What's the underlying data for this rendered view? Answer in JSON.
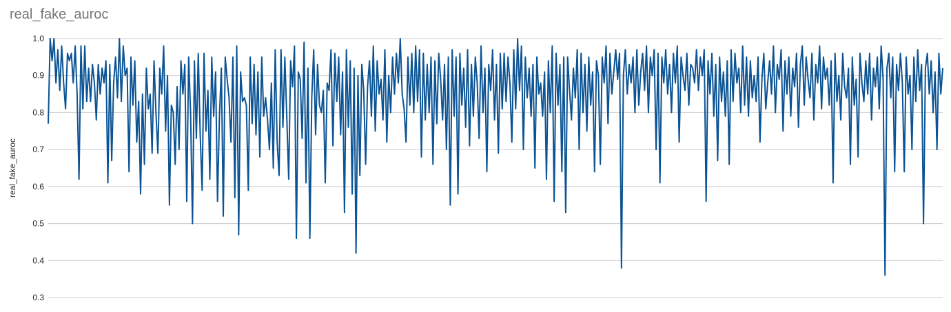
{
  "chart_data": {
    "type": "line",
    "title": "real_fake_auroc",
    "xlabel": "",
    "ylabel": "real_fake_auroc",
    "ylim": [
      0.3,
      1.0
    ],
    "yticks": [
      "0.3",
      "0.4",
      "0.5",
      "0.6",
      "0.7",
      "0.8",
      "0.9",
      "1.0"
    ],
    "grid": true,
    "legend": "none",
    "series": [
      {
        "color": "#0b5394",
        "values": [
          0.77,
          1.0,
          0.94,
          1.0,
          0.88,
          0.97,
          0.86,
          0.98,
          0.88,
          0.81,
          0.96,
          0.94,
          0.96,
          0.88,
          0.98,
          0.85,
          0.62,
          0.98,
          0.81,
          0.98,
          0.83,
          0.92,
          0.83,
          0.93,
          0.88,
          0.78,
          0.93,
          0.85,
          0.92,
          0.88,
          0.94,
          0.61,
          0.93,
          0.67,
          0.88,
          0.95,
          0.84,
          1.0,
          0.83,
          0.98,
          0.9,
          0.92,
          0.64,
          0.95,
          0.82,
          0.94,
          0.72,
          0.83,
          0.58,
          0.85,
          0.66,
          0.92,
          0.81,
          0.85,
          0.69,
          0.94,
          0.8,
          0.69,
          0.92,
          0.85,
          0.98,
          0.75,
          0.9,
          0.55,
          0.82,
          0.8,
          0.66,
          0.87,
          0.7,
          0.94,
          0.85,
          0.93,
          0.56,
          0.95,
          0.8,
          0.5,
          0.94,
          0.73,
          0.96,
          0.74,
          0.59,
          0.96,
          0.75,
          0.86,
          0.62,
          0.95,
          0.79,
          0.91,
          0.56,
          0.79,
          0.92,
          0.52,
          0.95,
          0.89,
          0.84,
          0.72,
          0.95,
          0.57,
          0.98,
          0.47,
          0.91,
          0.83,
          0.84,
          0.82,
          0.59,
          0.95,
          0.77,
          0.93,
          0.74,
          0.91,
          0.68,
          0.95,
          0.79,
          0.84,
          0.78,
          0.7,
          0.88,
          0.65,
          0.97,
          0.72,
          0.63,
          0.97,
          0.76,
          0.95,
          0.79,
          0.62,
          0.94,
          0.87,
          0.98,
          0.46,
          0.91,
          0.89,
          0.73,
          0.99,
          0.61,
          0.92,
          0.46,
          0.84,
          0.97,
          0.74,
          0.93,
          0.82,
          0.8,
          0.86,
          0.61,
          0.88,
          0.86,
          0.97,
          0.71,
          0.96,
          0.83,
          0.95,
          0.74,
          0.91,
          0.53,
          0.97,
          0.76,
          0.94,
          0.58,
          0.92,
          0.42,
          0.9,
          0.63,
          0.93,
          0.86,
          0.66,
          0.87,
          0.94,
          0.79,
          0.98,
          0.75,
          0.94,
          0.85,
          0.89,
          0.78,
          0.97,
          0.72,
          0.9,
          0.8,
          0.95,
          0.85,
          0.96,
          0.88,
          1.0,
          0.85,
          0.81,
          0.72,
          0.95,
          0.82,
          0.96,
          0.8,
          0.98,
          0.83,
          0.97,
          0.68,
          0.96,
          0.78,
          0.93,
          0.8,
          0.95,
          0.66,
          0.94,
          0.77,
          0.96,
          0.89,
          0.78,
          0.93,
          0.7,
          0.95,
          0.55,
          0.97,
          0.79,
          0.95,
          0.58,
          0.96,
          0.82,
          0.92,
          0.76,
          0.97,
          0.71,
          0.93,
          0.79,
          0.95,
          0.88,
          0.73,
          0.98,
          0.8,
          0.92,
          0.64,
          0.93,
          0.86,
          0.97,
          0.78,
          0.93,
          0.69,
          0.96,
          0.81,
          0.96,
          0.83,
          0.95,
          0.88,
          0.72,
          0.97,
          0.81,
          1.0,
          0.86,
          0.98,
          0.7,
          0.95,
          0.84,
          0.92,
          0.79,
          0.93,
          0.65,
          0.95,
          0.85,
          0.88,
          0.79,
          0.91,
          0.62,
          0.94,
          0.8,
          0.98,
          0.56,
          0.96,
          0.82,
          0.93,
          0.64,
          0.95,
          0.53,
          0.95,
          0.86,
          0.78,
          0.92,
          0.84,
          0.97,
          0.7,
          0.96,
          0.8,
          0.93,
          0.75,
          0.95,
          0.82,
          0.91,
          0.64,
          0.94,
          0.9,
          0.66,
          0.95,
          0.88,
          0.98,
          0.77,
          0.96,
          0.85,
          0.91,
          0.97,
          0.89,
          0.96,
          0.38,
          0.9,
          0.97,
          0.85,
          0.93,
          0.88,
          0.95,
          0.8,
          0.97,
          0.82,
          0.91,
          0.96,
          0.86,
          0.98,
          0.8,
          0.95,
          0.9,
          0.97,
          0.7,
          0.96,
          0.61,
          0.95,
          0.88,
          0.97,
          0.85,
          0.93,
          0.8,
          0.96,
          0.88,
          0.98,
          0.72,
          0.95,
          0.9,
          0.86,
          0.96,
          0.82,
          0.93,
          0.92,
          0.88,
          0.97,
          0.86,
          0.95,
          0.9,
          0.97,
          0.56,
          0.94,
          0.85,
          0.96,
          0.79,
          0.93,
          0.67,
          0.95,
          0.83,
          0.91,
          0.79,
          0.94,
          0.66,
          0.97,
          0.83,
          0.96,
          0.88,
          0.92,
          0.8,
          0.98,
          0.82,
          0.95,
          0.79,
          0.94,
          0.84,
          0.9,
          0.83,
          0.95,
          0.72,
          0.89,
          0.96,
          0.81,
          0.88,
          0.94,
          0.85,
          0.98,
          0.8,
          0.93,
          0.89,
          0.97,
          0.75,
          0.94,
          0.85,
          0.95,
          0.79,
          0.92,
          0.87,
          0.96,
          0.76,
          0.93,
          0.98,
          0.82,
          0.95,
          0.89,
          0.84,
          0.96,
          0.78,
          0.93,
          0.88,
          0.98,
          0.81,
          0.95,
          0.89,
          0.92,
          0.82,
          0.94,
          0.61,
          0.96,
          0.83,
          0.9,
          0.78,
          0.96,
          0.87,
          0.84,
          0.92,
          0.66,
          0.95,
          0.82,
          0.89,
          0.68,
          0.96,
          0.88,
          0.83,
          0.94,
          0.85,
          0.96,
          0.78,
          0.92,
          0.87,
          0.95,
          0.81,
          0.98,
          0.89,
          0.36,
          0.92,
          0.96,
          0.84,
          0.95,
          0.64,
          0.93,
          0.86,
          0.96,
          0.88,
          0.64,
          0.95,
          0.85,
          0.9,
          0.7,
          0.95,
          0.83,
          0.97,
          0.86,
          0.93,
          0.5,
          0.92,
          0.96,
          0.85,
          0.94,
          0.8,
          0.91,
          0.7,
          0.96,
          0.85,
          0.92
        ]
      }
    ]
  }
}
